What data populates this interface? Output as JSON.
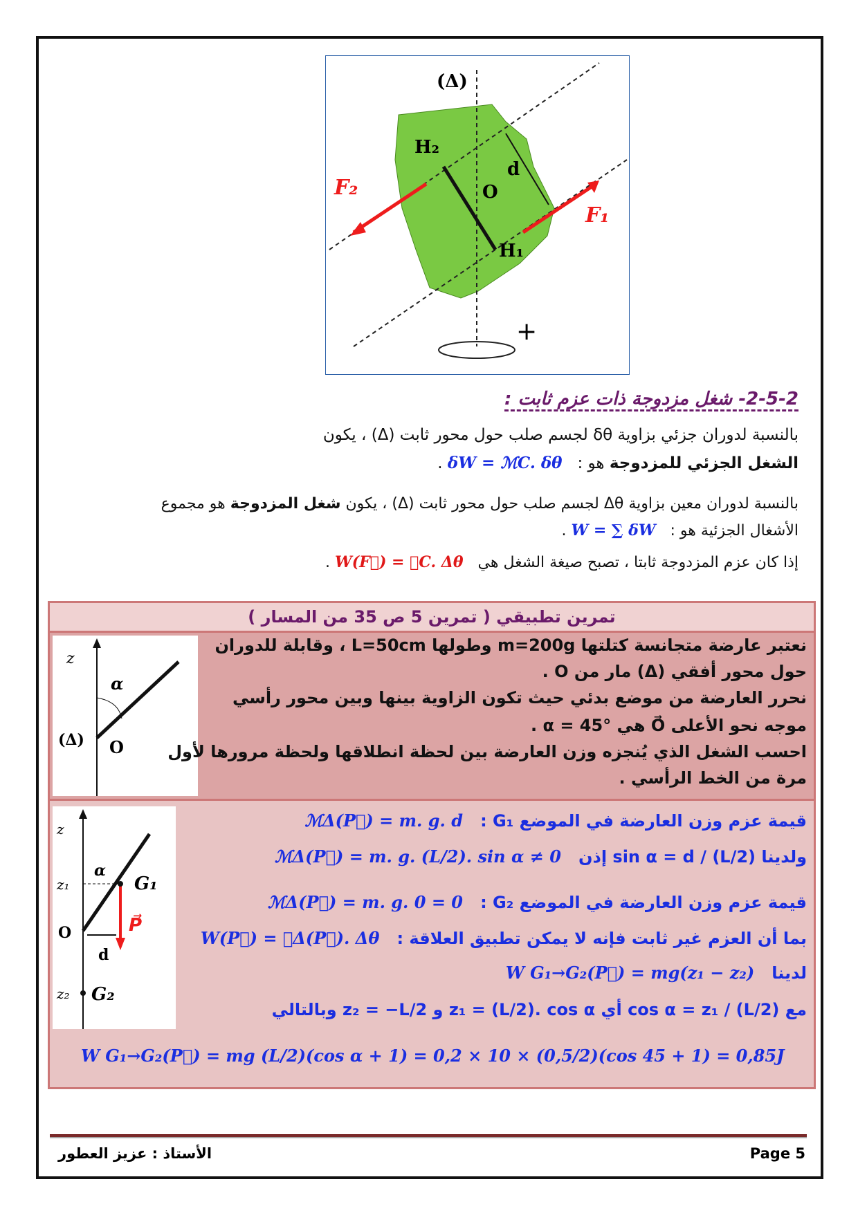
{
  "figure": {
    "axis_label": "(Δ)",
    "labels": {
      "h2": "H₂",
      "h1": "H₁",
      "o": "O",
      "d": "d",
      "f1": "F₁",
      "f2": "F₂",
      "plus": "+"
    },
    "body_color": "#7ac943",
    "force_color": "#ee1c1c"
  },
  "section": {
    "heading": "2-5-2- شغل مزدوجة ذات عزم ثابت :",
    "p1_line1": "بالنسبة لدوران جزئي بزاوية δθ لجسم صلب حول محور ثابت (Δ) ، يكون",
    "p1_line2_bold": "الشغل الجزئي للمزدوجة",
    "p1_line2_rest": "هو :",
    "p1_formula": "δW = ℳC. δθ",
    "p2_line1_a": "بالنسبة لدوران معين بزاوية Δθ لجسم صلب حول محور ثابت (Δ) ، يكون",
    "p2_line1_bold": "شغل المزدوجة",
    "p2_line1_b": "هو مجموع",
    "p2_line2": "الأشغال الجزئية هو :",
    "p2_formula": "W = ∑ δW",
    "p3_text": "إذا كان عزم المزدوجة ثابتا ، تصبح صيغة الشغل هي",
    "p3_formula": "W(F⃗) = ℳC. Δθ"
  },
  "exercise": {
    "title": "تمرين تطبيقي ( تمرين 5 ص 35 من المسار )",
    "statement": [
      "نعتبر عارضة متجانسة كتلتها m=200g وطولها L=50cm ، وقابلة للدوران",
      "حول محور أفقي (Δ) مار من O .",
      "نحرر العارضة من موضع بدئي حيث تكون الزاوية بينها وبين محور رأسي",
      "موجه نحو الأعلى O⃗ هي α = 45° .",
      "احسب الشغل الذي يُنجزه وزن العارضة بين لحظة انطلاقها ولحظة مرورها لأول",
      "مرة من الخط الرأسي ."
    ],
    "fig1": {
      "z": "z",
      "alpha": "α",
      "delta": "(Δ)",
      "o": "O"
    },
    "fig2": {
      "z": "z",
      "z1": "z₁",
      "z2": "z₂",
      "alpha": "α",
      "g1": "G₁",
      "g2": "G₂",
      "o": "O",
      "p": "P⃗",
      "d": "d"
    },
    "solution": [
      {
        "text": "قيمة عزم وزن العارضة في الموضع G₁ :",
        "formula": "ℳΔ(P⃗) = m. g. d"
      },
      {
        "text": "ولدينا  sin α = d / (L/2)  إذن",
        "formula": "ℳΔ(P⃗) = m. g. (L/2). sin α ≠ 0"
      },
      {
        "text": "قيمة عزم وزن العارضة في الموضع G₂ :",
        "formula": "ℳΔ(P⃗) = m. g. 0 = 0"
      },
      {
        "text": "بما أن العزم غير ثابت فإنه لا يمكن تطبيق العلاقة :",
        "formula": "W(P⃗) = ℳΔ(P⃗). Δθ"
      },
      {
        "text": "لدينا",
        "formula": "W G₁→G₂(P⃗) = mg(z₁ − z₂)"
      },
      {
        "text": "مع  cos α = z₁ / (L/2)  أي  z₁ = (L/2). cos α  و  z₂ = −L/2  وبالتالي",
        "formula": ""
      }
    ],
    "final": "W G₁→G₂(P⃗) = mg (L/2)(cos α + 1) = 0,2 × 10 × (0,5/2)(cos 45 + 1) = 0,85J"
  },
  "footer": {
    "author": "الأستاذ  :  عزيز العطور",
    "page": "Page 5"
  }
}
